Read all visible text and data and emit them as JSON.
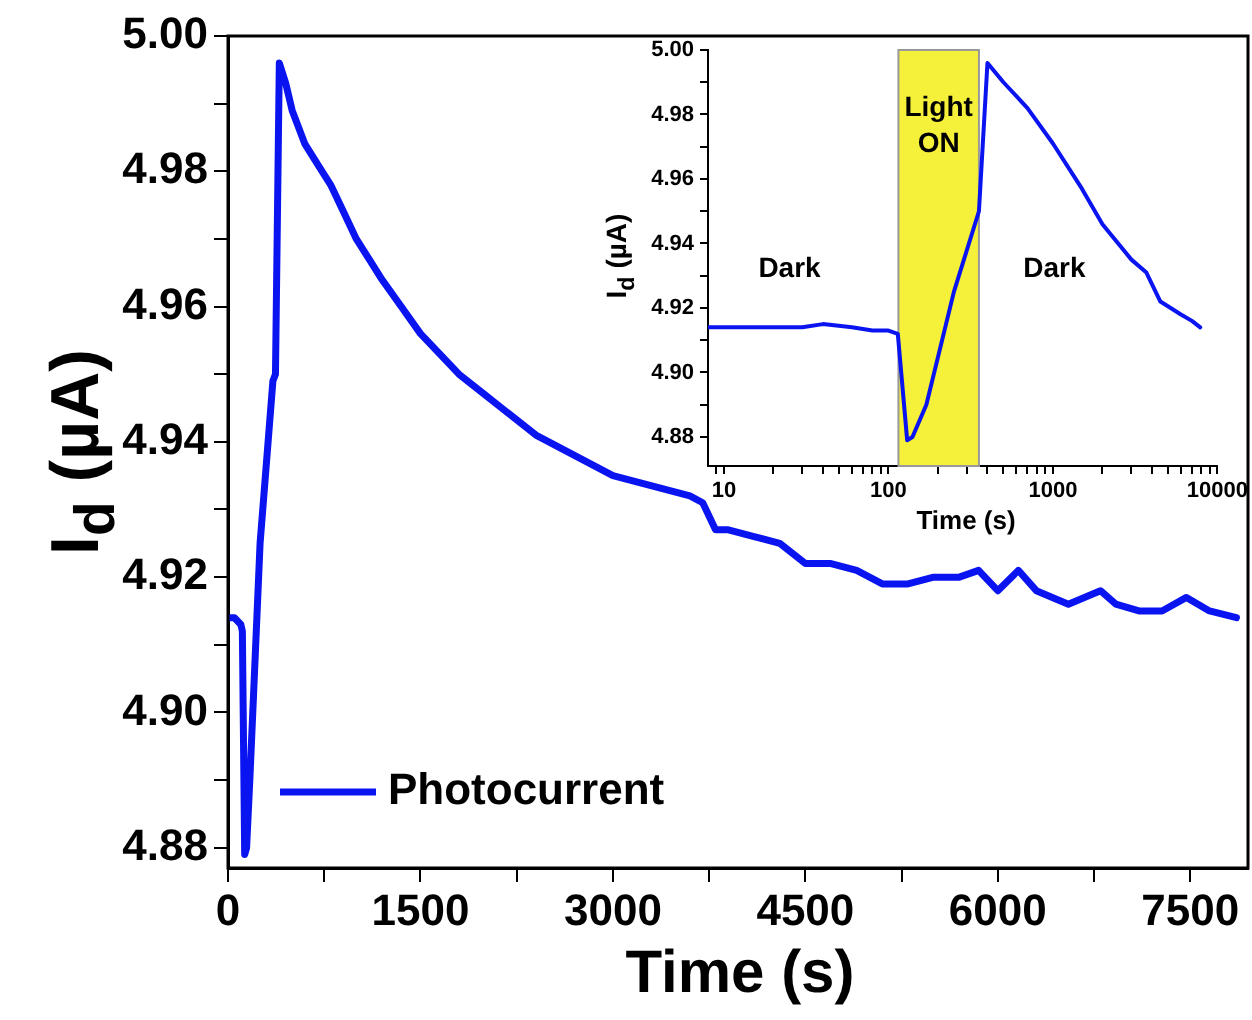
{
  "chart_data": [
    {
      "type": "line",
      "xlabel": "Time (s)",
      "ylabel": "I$_{d}$ (µA)",
      "legend": "bottom left",
      "grid": false,
      "xlim": [
        0,
        7950
      ],
      "ylim": [
        4.877,
        5.0
      ],
      "xticks": [
        0,
        {
          "value": 750,
          "label": null
        },
        1500,
        {
          "value": 2250,
          "label": null
        },
        3000,
        {
          "value": 3750,
          "label": null
        },
        4500,
        {
          "value": 5250,
          "label": null
        },
        6000,
        {
          "value": 6750,
          "label": null
        },
        7500
      ],
      "yticks": [
        4.88,
        {
          "value": 4.89,
          "label": null
        },
        {
          "value": 4.9,
          "label": "4.90"
        },
        {
          "value": 4.91,
          "label": null
        },
        4.92,
        {
          "value": 4.93,
          "label": null
        },
        4.94,
        {
          "value": 4.95,
          "label": null
        },
        4.96,
        {
          "value": 4.97,
          "label": null
        },
        4.98,
        {
          "value": 4.99,
          "label": null
        },
        {
          "value": 5.0,
          "label": "5.00"
        }
      ],
      "series": [
        {
          "name": "Photocurrent",
          "color": "#0a14f0",
          "x": [
            0,
            50,
            100,
            112,
            130,
            145,
            170,
            200,
            250,
            300,
            350,
            370,
            400,
            450,
            500,
            600,
            700,
            800,
            900,
            1000,
            1100,
            1200,
            1350,
            1500,
            1650,
            1800,
            2000,
            2200,
            2400,
            2600,
            2800,
            3000,
            3200,
            3400,
            3600,
            3700,
            3800,
            3900,
            4100,
            4300,
            4500,
            4700,
            4900,
            5100,
            5300,
            5500,
            5700,
            5850,
            6000,
            6160,
            6300,
            6550,
            6800,
            6920,
            7100,
            7280,
            7470,
            7650,
            7860
          ],
          "values": [
            4.914,
            4.914,
            4.913,
            4.912,
            4.879,
            4.88,
            4.89,
            4.903,
            4.925,
            4.937,
            4.949,
            4.95,
            4.996,
            4.993,
            4.989,
            4.984,
            4.981,
            4.978,
            4.974,
            4.97,
            4.967,
            4.964,
            4.96,
            4.956,
            4.953,
            4.95,
            4.947,
            4.944,
            4.941,
            4.939,
            4.937,
            4.935,
            4.934,
            4.933,
            4.932,
            4.931,
            4.927,
            4.927,
            4.926,
            4.925,
            4.922,
            4.922,
            4.921,
            4.919,
            4.919,
            4.92,
            4.92,
            4.921,
            4.918,
            4.921,
            4.918,
            4.916,
            4.918,
            4.916,
            4.915,
            4.915,
            4.917,
            4.915,
            4.914
          ]
        }
      ]
    },
    {
      "type": "line",
      "xlabel": "Time (s)",
      "ylabel": "I$_{d}$ (µA)",
      "grid": false,
      "log": "x",
      "xlim": [
        8,
        10000
      ],
      "ylim": [
        4.871,
        5.0
      ],
      "xticks": [
        {
          "value": 9,
          "label": null
        },
        10,
        {
          "value": 20,
          "label": null
        },
        {
          "value": 30,
          "label": null
        },
        {
          "value": 40,
          "label": null
        },
        {
          "value": 50,
          "label": null
        },
        {
          "value": 60,
          "label": null
        },
        {
          "value": 70,
          "label": null
        },
        {
          "value": 80,
          "label": null
        },
        {
          "value": 90,
          "label": null
        },
        100,
        {
          "value": 200,
          "label": null
        },
        {
          "value": 300,
          "label": null
        },
        {
          "value": 400,
          "label": null
        },
        {
          "value": 500,
          "label": null
        },
        {
          "value": 600,
          "label": null
        },
        {
          "value": 700,
          "label": null
        },
        {
          "value": 800,
          "label": null
        },
        {
          "value": 900,
          "label": null
        },
        1000,
        {
          "value": 2000,
          "label": null
        },
        {
          "value": 3000,
          "label": null
        },
        {
          "value": 4000,
          "label": null
        },
        {
          "value": 5000,
          "label": null
        },
        {
          "value": 6000,
          "label": null
        },
        {
          "value": 7000,
          "label": null
        },
        {
          "value": 8000,
          "label": null
        },
        {
          "value": 9000,
          "label": null
        },
        10000
      ],
      "yticks": [
        4.88,
        {
          "value": 4.89,
          "label": null
        },
        {
          "value": 4.9,
          "label": "4.90"
        },
        {
          "value": 4.91,
          "label": null
        },
        4.92,
        {
          "value": 4.93,
          "label": null
        },
        4.94,
        {
          "value": 4.95,
          "label": null
        },
        4.96,
        {
          "value": 4.97,
          "label": null
        },
        4.98,
        {
          "value": 4.99,
          "label": null
        },
        {
          "value": 5.0,
          "label": "5.00"
        }
      ],
      "bands": [
        {
          "axis": "x",
          "from": 115,
          "to": 355,
          "label": "Light ON",
          "color": "#f5f03a"
        }
      ],
      "annotations": [
        "Dark",
        "Dark"
      ],
      "series": [
        {
          "color": "#0a14f0",
          "x": [
            8,
            15,
            30,
            40,
            60,
            80,
            100,
            114,
            130,
            140,
            170,
            250,
            355,
            400,
            500,
            700,
            1000,
            1500,
            2000,
            3000,
            3700,
            4500,
            6000,
            7000,
            7860
          ],
          "values": [
            4.914,
            4.914,
            4.914,
            4.915,
            4.914,
            4.913,
            4.913,
            4.912,
            4.879,
            4.88,
            4.89,
            4.925,
            4.95,
            4.996,
            4.99,
            4.982,
            4.971,
            4.957,
            4.946,
            4.935,
            4.931,
            4.922,
            4.918,
            4.916,
            4.914
          ]
        }
      ]
    }
  ]
}
